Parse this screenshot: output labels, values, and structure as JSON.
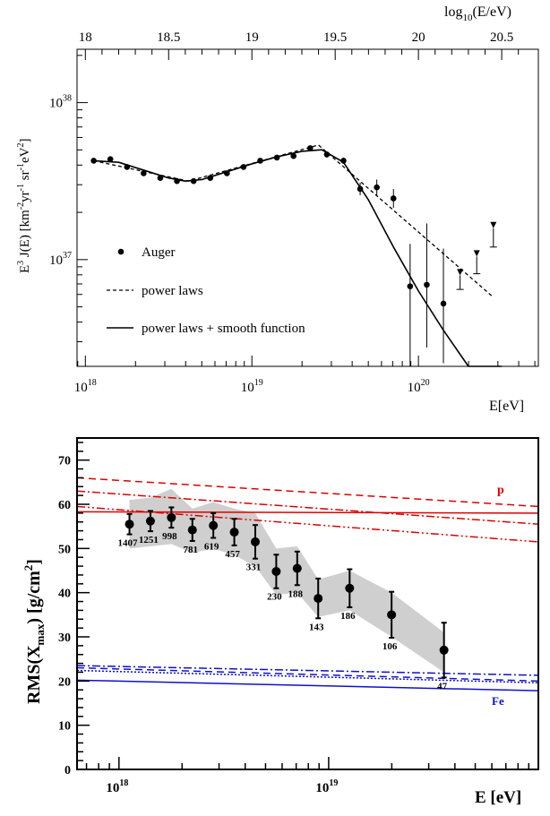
{
  "chart_data": [
    {
      "type": "scatter",
      "title": "",
      "xlabel": "E[eV]",
      "top_axis_label": "log10(E/eV)",
      "top_axis_label_parts": [
        "log",
        "10",
        "(E/eV)"
      ],
      "ylabel": "E3 J(E) [km-2 yr-1 sr-1 eV2]",
      "ylabel_parts": [
        "E",
        "3",
        " J(E) [km",
        "-2",
        "yr",
        "-1",
        " sr",
        "-1",
        "eV",
        "2",
        "]"
      ],
      "x_scale": "log10",
      "y_scale": "log10",
      "xlim": [
        17.95,
        20.72
      ],
      "ylim": [
        36.32,
        38.34
      ],
      "x_ticks": [
        18,
        19,
        20
      ],
      "x_tick_labels": [
        [
          "10",
          "18"
        ],
        [
          "10",
          "19"
        ],
        [
          "10",
          "20"
        ]
      ],
      "top_ticks": [
        18,
        18.5,
        19,
        19.5,
        20,
        20.5
      ],
      "top_tick_labels": [
        "18",
        "18.5",
        "19",
        "19.5",
        "20",
        "20.5"
      ],
      "y_ticks": [
        37,
        38
      ],
      "y_tick_labels": [
        [
          "10",
          "37"
        ],
        [
          "10",
          "38"
        ]
      ],
      "legend": {
        "position": "lower-left",
        "entries": [
          {
            "label": "Auger",
            "style": "marker"
          },
          {
            "label": "power laws",
            "style": "dashed"
          },
          {
            "label": "power laws + smooth function",
            "style": "solid"
          }
        ]
      },
      "series": [
        {
          "name": "Auger",
          "kind": "points",
          "x": [
            18.05,
            18.15,
            18.25,
            18.35,
            18.45,
            18.55,
            18.65,
            18.75,
            18.85,
            18.95,
            19.05,
            19.15,
            19.25,
            19.35,
            19.45,
            19.55,
            19.65,
            19.75,
            19.85,
            19.95,
            20.05,
            20.15
          ],
          "y": [
            37.63,
            37.64,
            37.59,
            37.55,
            37.52,
            37.5,
            37.5,
            37.52,
            37.55,
            37.59,
            37.63,
            37.65,
            37.66,
            37.71,
            37.67,
            37.63,
            37.45,
            37.46,
            37.39,
            36.83,
            36.84,
            36.72
          ],
          "yerr_low": [
            0.01,
            0.01,
            0.01,
            0.01,
            0.01,
            0.01,
            0.01,
            0.01,
            0.01,
            0.01,
            0.01,
            0.01,
            0.01,
            0.01,
            0.02,
            0.02,
            0.04,
            0.05,
            0.06,
            0.53,
            0.4,
            0.38
          ],
          "yerr_high": [
            0.01,
            0.01,
            0.01,
            0.01,
            0.01,
            0.01,
            0.01,
            0.01,
            0.01,
            0.01,
            0.01,
            0.01,
            0.01,
            0.01,
            0.02,
            0.02,
            0.04,
            0.05,
            0.06,
            0.27,
            0.39,
            0.35
          ]
        },
        {
          "name": "upper limits",
          "kind": "upper_limits",
          "x": [
            20.25,
            20.35,
            20.45
          ],
          "y": [
            36.9,
            37.02,
            37.2
          ],
          "y_top": [
            36.81,
            36.91,
            37.08
          ]
        },
        {
          "name": "power laws",
          "kind": "dashed",
          "x": [
            18.05,
            18.62,
            19.4,
            20.45
          ],
          "y": [
            37.63,
            37.5,
            37.73,
            36.76
          ]
        },
        {
          "name": "power laws + smooth function",
          "kind": "solid",
          "x": [
            18.05,
            18.2,
            18.35,
            18.5,
            18.6,
            18.7,
            18.85,
            19.0,
            19.15,
            19.3,
            19.42,
            19.55,
            19.7,
            19.85,
            20.0,
            20.15,
            20.3,
            20.4,
            20.5
          ],
          "y": [
            37.63,
            37.62,
            37.57,
            37.52,
            37.5,
            37.51,
            37.56,
            37.61,
            37.655,
            37.69,
            37.7,
            37.62,
            37.38,
            37.08,
            36.8,
            36.55,
            36.32,
            36.32,
            36.32
          ]
        }
      ]
    },
    {
      "type": "scatter",
      "title": "",
      "xlabel": "E [eV]",
      "ylabel": "RMS(Xmax) [g/cm2]",
      "ylabel_parts": [
        "RMS(X",
        "max",
        ") [g/cm",
        "2",
        "]"
      ],
      "x_scale": "log10",
      "xlim": [
        17.8,
        20.0
      ],
      "ylim": [
        0,
        75
      ],
      "x_ticks": [
        18,
        19
      ],
      "x_tick_labels": [
        [
          "10",
          "18"
        ],
        [
          "10",
          "19"
        ]
      ],
      "y_ticks": [
        0,
        10,
        20,
        30,
        40,
        50,
        60,
        70
      ],
      "y_tick_labels": [
        "0",
        "10",
        "20",
        "30",
        "40",
        "50",
        "60",
        "70"
      ],
      "annotations": [
        {
          "text": "p",
          "color": "#dd0000"
        },
        {
          "text": "Fe",
          "color": "#1010cc"
        }
      ],
      "points": {
        "x": [
          18.05,
          18.15,
          18.25,
          18.35,
          18.45,
          18.55,
          18.65,
          18.75,
          18.85,
          18.95,
          19.1,
          19.3,
          19.55
        ],
        "y": [
          55.5,
          56.2,
          57.0,
          54.2,
          55.2,
          53.7,
          51.5,
          44.8,
          45.5,
          38.7,
          41.0,
          35.0,
          27.0
        ],
        "err": [
          2.3,
          2.3,
          2.3,
          2.5,
          2.8,
          3.0,
          3.8,
          3.8,
          3.8,
          4.5,
          4.3,
          5.2,
          6.2
        ],
        "counts": [
          "1407",
          "1251",
          "998",
          "781",
          "619",
          "457",
          "331",
          "230",
          "188",
          "143",
          "186",
          "106",
          "47"
        ]
      },
      "systematic_band": {
        "x": [
          18.05,
          18.15,
          18.25,
          18.35,
          18.45,
          18.55,
          18.65,
          18.75,
          18.85,
          18.95,
          19.1,
          19.3,
          19.55
        ],
        "upper": [
          61.0,
          61.5,
          63.5,
          59.0,
          60.5,
          59.0,
          58.0,
          50.0,
          50.5,
          43.0,
          45.0,
          40.0,
          31.0
        ],
        "lower": [
          50.0,
          50.5,
          51.0,
          49.0,
          50.0,
          48.5,
          46.0,
          39.5,
          40.0,
          34.5,
          36.0,
          30.0,
          22.0
        ]
      },
      "series": [
        {
          "name": "p dashed",
          "color": "#dd0000",
          "style": "dashed",
          "x": [
            17.8,
            20.0
          ],
          "y": [
            66,
            59.5
          ]
        },
        {
          "name": "p dashdot",
          "color": "#dd0000",
          "style": "dashdot",
          "x": [
            17.8,
            20.0
          ],
          "y": [
            63,
            55.5
          ]
        },
        {
          "name": "p dashdotdot",
          "color": "#dd0000",
          "style": "dashdotdot",
          "x": [
            17.8,
            20.0
          ],
          "y": [
            59.5,
            51.5
          ]
        },
        {
          "name": "p solid",
          "color": "#dd0000",
          "style": "solid",
          "x": [
            17.8,
            20.0
          ],
          "y": [
            58.3,
            58.0
          ]
        },
        {
          "name": "Fe dashdot",
          "color": "#1010cc",
          "style": "dashdot",
          "x": [
            17.8,
            20.0
          ],
          "y": [
            23.5,
            21.3
          ]
        },
        {
          "name": "Fe dashed",
          "color": "#1010cc",
          "style": "dashed",
          "x": [
            17.8,
            20.0
          ],
          "y": [
            23.0,
            20.0
          ]
        },
        {
          "name": "Fe dotted",
          "color": "#1010cc",
          "style": "dotted",
          "x": [
            17.8,
            20.0
          ],
          "y": [
            22.4,
            19.6
          ]
        },
        {
          "name": "Fe solid",
          "color": "#1010cc",
          "style": "solid",
          "x": [
            17.8,
            20.0
          ],
          "y": [
            20.2,
            17.8
          ]
        }
      ]
    }
  ]
}
